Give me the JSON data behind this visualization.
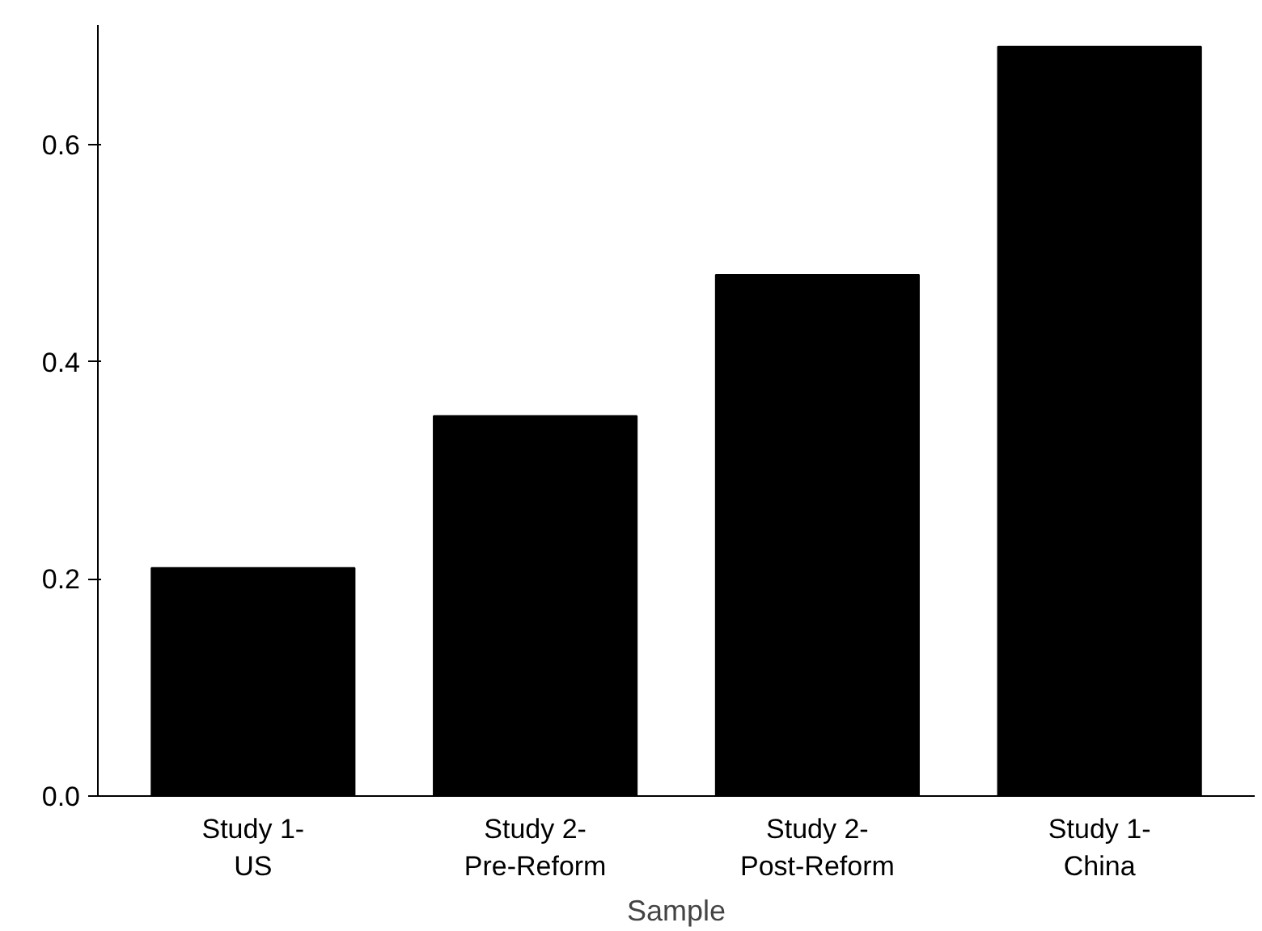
{
  "chart_data": {
    "type": "bar",
    "xlabel": "Sample",
    "categories": [
      "Study 1-\nUS",
      "Study 2-\nPre-Reform",
      "Study 2-\nPost-Reform",
      "Study 1-\nChina"
    ],
    "values": [
      0.21,
      0.35,
      0.48,
      0.69
    ],
    "color": "#000000",
    "ylim": [
      0,
      0.71
    ],
    "yticks": [
      {
        "value": 0,
        "label": "0.0"
      },
      {
        "value": 0.2,
        "label": "0.2"
      },
      {
        "value": 0.4,
        "label": "0.4"
      },
      {
        "value": 0.6,
        "label": "0.6"
      }
    ],
    "grid": false
  }
}
